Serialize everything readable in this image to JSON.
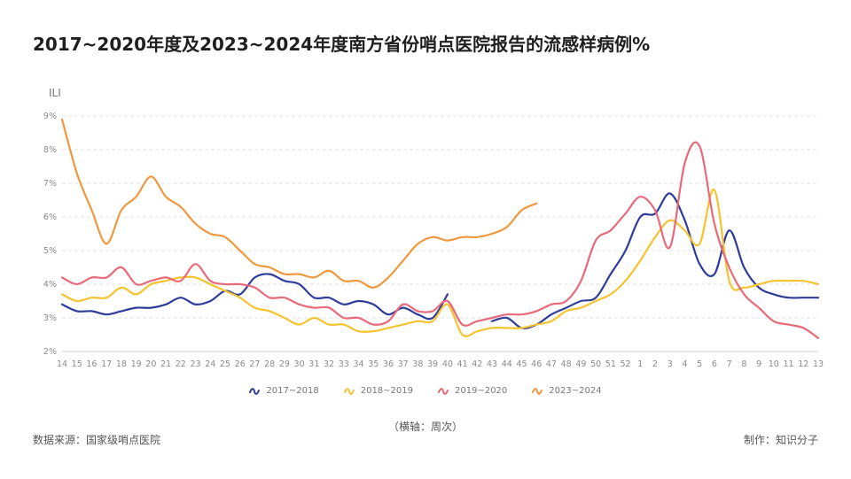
{
  "chart_data": {
    "type": "line",
    "title": "2017~2020年度及2023~2024年度南方省份哨点医院报告的流感样病例%",
    "ylabel": "ILI",
    "xlabel": "（横轴：周次）",
    "ylim": [
      2,
      9
    ],
    "yticks": [
      "2%",
      "3%",
      "4%",
      "5%",
      "6%",
      "7%",
      "8%",
      "9%"
    ],
    "categories": [
      "14",
      "15",
      "16",
      "17",
      "18",
      "19",
      "20",
      "21",
      "22",
      "23",
      "24",
      "25",
      "26",
      "27",
      "28",
      "29",
      "30",
      "31",
      "32",
      "33",
      "34",
      "35",
      "36",
      "37",
      "38",
      "39",
      "40",
      "41",
      "42",
      "43",
      "44",
      "45",
      "46",
      "47",
      "48",
      "49",
      "50",
      "51",
      "52",
      "1",
      "2",
      "3",
      "4",
      "5",
      "6",
      "7",
      "8",
      "9",
      "10",
      "11",
      "12",
      "13"
    ],
    "grid": "horizontal-dashed",
    "legend_position": "bottom-center",
    "series": [
      {
        "name": "2017~2018",
        "color": "#2e3c9a",
        "values": [
          3.4,
          3.2,
          3.2,
          3.1,
          3.2,
          3.3,
          3.3,
          3.4,
          3.6,
          3.4,
          3.5,
          3.8,
          3.7,
          4.2,
          4.3,
          4.1,
          4.0,
          3.6,
          3.6,
          3.4,
          3.5,
          3.4,
          3.1,
          3.3,
          3.1,
          3.0,
          3.7,
          null,
          null,
          2.9,
          3.0,
          2.7,
          2.8,
          3.1,
          3.3,
          3.5,
          3.6,
          4.3,
          5.0,
          6.0,
          6.1,
          6.7,
          5.9,
          4.6,
          4.3,
          5.6,
          4.5,
          3.9,
          3.7,
          3.6,
          3.6,
          3.6
        ]
      },
      {
        "name": "2018~2019",
        "color": "#f4c430",
        "values": [
          3.7,
          3.5,
          3.6,
          3.6,
          3.9,
          3.7,
          4.0,
          4.1,
          4.2,
          4.2,
          4.0,
          3.8,
          3.6,
          3.3,
          3.2,
          3.0,
          2.8,
          3.0,
          2.8,
          2.8,
          2.6,
          2.6,
          2.7,
          2.8,
          2.9,
          2.9,
          3.4,
          2.5,
          2.6,
          2.7,
          2.7,
          2.7,
          2.8,
          2.9,
          3.2,
          3.3,
          3.5,
          3.7,
          4.1,
          4.7,
          5.4,
          5.9,
          5.6,
          5.2,
          6.8,
          4.1,
          3.9,
          4.0,
          4.1,
          4.1,
          4.1,
          4.0
        ]
      },
      {
        "name": "2019~2020",
        "color": "#e8697a",
        "values": [
          4.2,
          4.0,
          4.2,
          4.2,
          4.5,
          4.0,
          4.1,
          4.2,
          4.1,
          4.6,
          4.1,
          4.0,
          4.0,
          3.9,
          3.6,
          3.6,
          3.4,
          3.3,
          3.3,
          3.0,
          3.0,
          2.8,
          2.9,
          3.4,
          3.2,
          3.2,
          3.5,
          2.8,
          2.9,
          3.0,
          3.1,
          3.1,
          3.2,
          3.4,
          3.5,
          4.1,
          5.3,
          5.6,
          6.1,
          6.6,
          6.2,
          5.1,
          7.6,
          8.1,
          5.8,
          4.5,
          3.7,
          3.3,
          2.9,
          2.8,
          2.7,
          2.4
        ]
      },
      {
        "name": "2023~2024",
        "color": "#f0983e",
        "values": [
          8.9,
          7.3,
          6.2,
          5.2,
          6.2,
          6.6,
          7.2,
          6.6,
          6.3,
          5.8,
          5.5,
          5.4,
          5.0,
          4.6,
          4.5,
          4.3,
          4.3,
          4.2,
          4.4,
          4.1,
          4.1,
          3.9,
          4.2,
          4.7,
          5.2,
          5.4,
          5.3,
          5.4,
          5.4,
          5.5,
          5.7,
          6.2,
          6.4,
          null,
          null,
          null,
          null,
          null,
          null,
          null,
          null,
          null,
          null,
          null,
          null,
          null,
          null,
          null,
          null,
          null,
          null,
          null
        ]
      }
    ]
  },
  "source_text": "数据来源：国家级哨点医院",
  "maker_text": "制作：知识分子"
}
